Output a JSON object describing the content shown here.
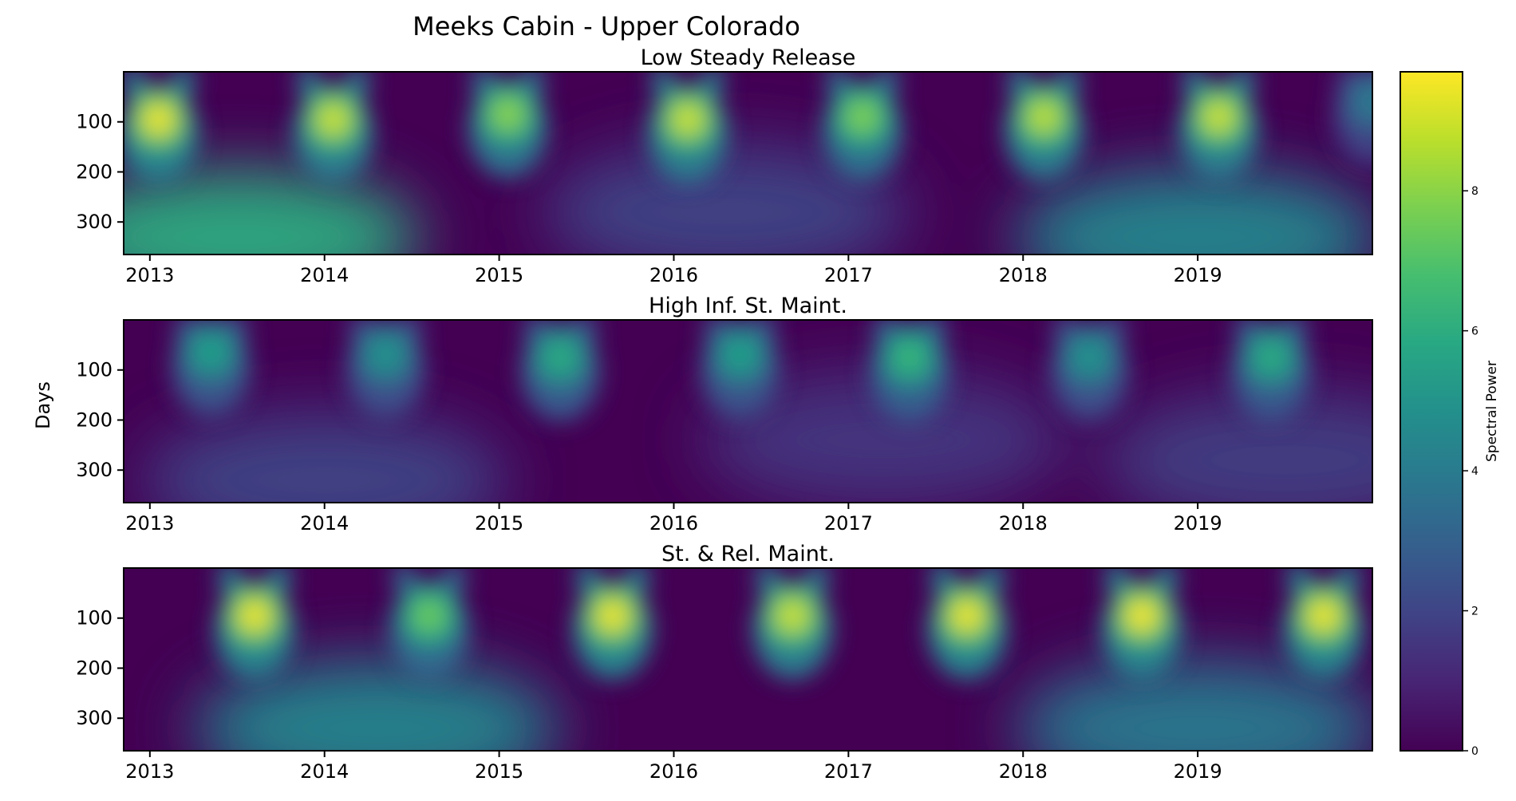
{
  "chart_data": {
    "type": "heatmap",
    "title": "Meeks Cabin - Upper Colorado",
    "ylabel": "Days",
    "colorbar_label": "Spectral Power",
    "colormap": "viridis",
    "x_range": [
      2012.85,
      2020.0
    ],
    "y_range": [
      0,
      365
    ],
    "y_inverted": true,
    "color_range": [
      0,
      9.7
    ],
    "x_ticks": [
      "2013",
      "2014",
      "2015",
      "2016",
      "2017",
      "2018",
      "2019"
    ],
    "x_tick_values": [
      2013,
      2014,
      2015,
      2016,
      2017,
      2018,
      2019
    ],
    "y_ticks": [
      "100",
      "200",
      "300"
    ],
    "y_tick_values": [
      100,
      200,
      300
    ],
    "colorbar_ticks": [
      "0",
      "2",
      "4",
      "6",
      "8"
    ],
    "colorbar_tick_values": [
      0,
      2,
      4,
      6,
      8
    ],
    "panels": [
      {
        "title": "Low Steady Release",
        "annual_peaks": [
          {
            "x": 2013.05,
            "y": 95,
            "power": 9.5
          },
          {
            "x": 2014.05,
            "y": 95,
            "power": 9.0
          },
          {
            "x": 2015.05,
            "y": 85,
            "power": 8.0
          },
          {
            "x": 2016.08,
            "y": 95,
            "power": 9.0
          },
          {
            "x": 2017.08,
            "y": 90,
            "power": 7.8
          },
          {
            "x": 2018.12,
            "y": 90,
            "power": 8.8
          },
          {
            "x": 2019.12,
            "y": 90,
            "power": 9.0
          },
          {
            "x": 2020.0,
            "y": 60,
            "power": 4.0
          }
        ],
        "low_frequency_bands": [
          {
            "x": 2013.5,
            "y": 330,
            "power": 6.0
          },
          {
            "x": 2016.3,
            "y": 280,
            "power": 2.0
          },
          {
            "x": 2019.0,
            "y": 330,
            "power": 4.5
          }
        ]
      },
      {
        "title": "High Inf. St. Maint.",
        "annual_peaks": [
          {
            "x": 2013.35,
            "y": 65,
            "power": 5.5
          },
          {
            "x": 2014.35,
            "y": 70,
            "power": 5.0
          },
          {
            "x": 2015.35,
            "y": 75,
            "power": 6.0
          },
          {
            "x": 2016.38,
            "y": 70,
            "power": 5.5
          },
          {
            "x": 2017.35,
            "y": 75,
            "power": 6.5
          },
          {
            "x": 2018.38,
            "y": 75,
            "power": 5.0
          },
          {
            "x": 2019.42,
            "y": 75,
            "power": 6.0
          }
        ],
        "low_frequency_bands": [
          {
            "x": 2014.0,
            "y": 320,
            "power": 2.0
          },
          {
            "x": 2017.2,
            "y": 240,
            "power": 1.5
          },
          {
            "x": 2019.5,
            "y": 280,
            "power": 1.8
          }
        ]
      },
      {
        "title": "St. & Rel. Maint.",
        "annual_peaks": [
          {
            "x": 2013.6,
            "y": 95,
            "power": 9.5
          },
          {
            "x": 2014.6,
            "y": 95,
            "power": 7.5
          },
          {
            "x": 2015.65,
            "y": 95,
            "power": 9.5
          },
          {
            "x": 2016.68,
            "y": 95,
            "power": 9.0
          },
          {
            "x": 2017.68,
            "y": 95,
            "power": 9.5
          },
          {
            "x": 2018.68,
            "y": 95,
            "power": 9.6
          },
          {
            "x": 2019.72,
            "y": 95,
            "power": 9.5
          }
        ],
        "low_frequency_bands": [
          {
            "x": 2014.3,
            "y": 320,
            "power": 4.5
          },
          {
            "x": 2019.0,
            "y": 320,
            "power": 4.0
          }
        ]
      }
    ]
  }
}
